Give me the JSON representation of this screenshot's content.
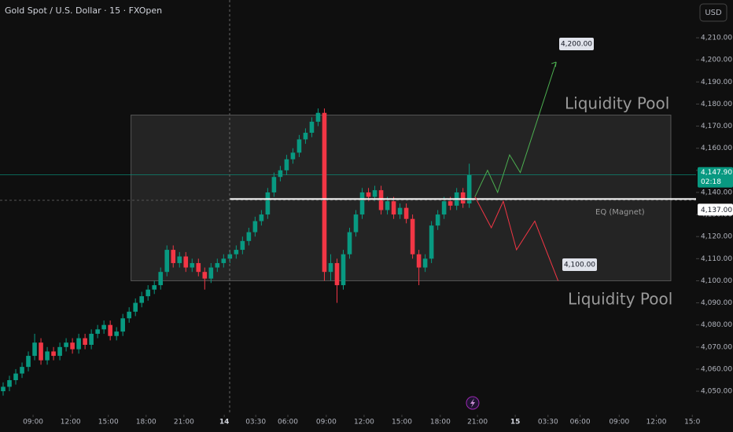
{
  "chart_data": {
    "type": "candlestick",
    "title": "Gold Spot / U.S. Dollar · 15 · FXOpen",
    "currency": "USD",
    "up_color": "#089981",
    "down_color": "#f23645",
    "series": {
      "open": [
        4050,
        4052,
        4055,
        4058,
        4061,
        4066,
        4072,
        4064,
        4068,
        4066,
        4070,
        4072,
        4069,
        4074,
        4071,
        4076,
        4078,
        4080,
        4075,
        4077,
        4083,
        4086,
        4090,
        4093,
        4096,
        4098,
        4104,
        4114,
        4108,
        4111,
        4106,
        4108,
        4104,
        4101,
        4106,
        4108,
        4110,
        4112,
        4114,
        4118,
        4122,
        4127,
        4130,
        4140,
        4147,
        4150,
        4155,
        4158,
        4164,
        4167,
        4172,
        4176,
        4104,
        4108,
        4098,
        4112,
        4122,
        4130,
        4140,
        4138,
        4141,
        4132,
        4136,
        4130,
        4133,
        4128,
        4112,
        4106,
        4110,
        4125,
        4130,
        4136,
        4134,
        4140,
        4135
      ],
      "high": [
        4054,
        4057,
        4060,
        4063,
        4068,
        4076,
        4074,
        4070,
        4070,
        4072,
        4074,
        4074,
        4076,
        4076,
        4078,
        4080,
        4082,
        4082,
        4079,
        4085,
        4088,
        4092,
        4095,
        4098,
        4100,
        4106,
        4116,
        4116,
        4113,
        4113,
        4110,
        4110,
        4106,
        4108,
        4110,
        4112,
        4114,
        4116,
        4120,
        4124,
        4129,
        4132,
        4142,
        4149,
        4152,
        4157,
        4160,
        4166,
        4169,
        4174,
        4178,
        4178,
        4112,
        4110,
        4114,
        4124,
        4132,
        4142,
        4142,
        4143,
        4143,
        4138,
        4138,
        4135,
        4135,
        4130,
        4114,
        4112,
        4127,
        4132,
        4138,
        4138,
        4142,
        4142,
        4153
      ],
      "low": [
        4048,
        4050,
        4053,
        4056,
        4059,
        4064,
        4062,
        4062,
        4064,
        4064,
        4068,
        4067,
        4067,
        4069,
        4069,
        4074,
        4076,
        4073,
        4073,
        4075,
        4081,
        4084,
        4088,
        4091,
        4094,
        4096,
        4102,
        4106,
        4106,
        4104,
        4104,
        4102,
        4096,
        4099,
        4104,
        4106,
        4108,
        4110,
        4112,
        4116,
        4120,
        4125,
        4128,
        4138,
        4145,
        4148,
        4153,
        4156,
        4162,
        4165,
        4170,
        4100,
        4100,
        4090,
        4096,
        4110,
        4120,
        4128,
        4136,
        4136,
        4130,
        4130,
        4128,
        4128,
        4126,
        4110,
        4098,
        4104,
        4108,
        4123,
        4128,
        4132,
        4132,
        4133,
        4133
      ],
      "close": [
        4052,
        4055,
        4058,
        4061,
        4066,
        4072,
        4064,
        4068,
        4066,
        4070,
        4072,
        4069,
        4074,
        4071,
        4076,
        4078,
        4080,
        4075,
        4077,
        4083,
        4086,
        4090,
        4093,
        4096,
        4098,
        4104,
        4114,
        4108,
        4111,
        4106,
        4108,
        4104,
        4101,
        4106,
        4108,
        4110,
        4112,
        4114,
        4118,
        4122,
        4127,
        4130,
        4140,
        4147,
        4150,
        4155,
        4158,
        4164,
        4167,
        4172,
        4176,
        4104,
        4108,
        4098,
        4112,
        4122,
        4130,
        4140,
        4138,
        4141,
        4132,
        4136,
        4130,
        4133,
        4128,
        4112,
        4106,
        4110,
        4125,
        4130,
        4136,
        4134,
        4140,
        4135,
        4147.9
      ]
    },
    "xlim": [
      -0.5,
      110
    ],
    "xticks": [
      {
        "value": 4.75,
        "label": "09:00"
      },
      {
        "value": 10.7,
        "label": "12:00"
      },
      {
        "value": 16.7,
        "label": "15:00"
      },
      {
        "value": 22.7,
        "label": "18:00"
      },
      {
        "value": 28.7,
        "label": "21:00"
      },
      {
        "value": 35.1,
        "label": "14"
      },
      {
        "value": 40.1,
        "label": "03:30"
      },
      {
        "value": 45.2,
        "label": "06:00"
      },
      {
        "value": 51.3,
        "label": "09:00"
      },
      {
        "value": 57.3,
        "label": "12:00"
      },
      {
        "value": 63.3,
        "label": "15:00"
      },
      {
        "value": 69.4,
        "label": "18:00"
      },
      {
        "value": 75.3,
        "label": "21:00"
      },
      {
        "value": 81.3,
        "label": "15"
      },
      {
        "value": 86.5,
        "label": "03:30"
      },
      {
        "value": 91.6,
        "label": "06:00"
      },
      {
        "value": 97.8,
        "label": "09:00"
      },
      {
        "value": 103.7,
        "label": "12:00"
      },
      {
        "value": 109.4,
        "label": "15:0"
      }
    ],
    "ylim": [
      4042.2,
      4227.1
    ],
    "yticks": [
      {
        "value": 4050,
        "label": "4,050.00"
      },
      {
        "value": 4060,
        "label": "4,060.00"
      },
      {
        "value": 4070,
        "label": "4,070.00"
      },
      {
        "value": 4080,
        "label": "4,080.00"
      },
      {
        "value": 4090,
        "label": "4,090.00"
      },
      {
        "value": 4100,
        "label": "4,100.00"
      },
      {
        "value": 4110,
        "label": "4,110.00"
      },
      {
        "value": 4120,
        "label": "4,120.00"
      },
      {
        "value": 4130,
        "label": "4,130.00"
      },
      {
        "value": 4140,
        "label": "4,140.00"
      },
      {
        "value": 4150,
        "label": "4,150.00"
      },
      {
        "value": 4160,
        "label": "4,160.00"
      },
      {
        "value": 4170,
        "label": "4,170.00"
      },
      {
        "value": 4180,
        "label": "4,180.00"
      },
      {
        "value": 4190,
        "label": "4,190.00"
      },
      {
        "value": 4200,
        "label": "4,200.00"
      },
      {
        "value": 4210,
        "label": "4,210.00"
      }
    ],
    "last_price": {
      "value": 4147.9,
      "label": "4,147.90",
      "countdown": "02:18"
    },
    "range_box": {
      "ylim": [
        4100,
        4175
      ],
      "xlim": [
        20.3,
        106
      ]
    },
    "eq_level": {
      "value": 4137,
      "label": "4,137.00",
      "name": "EQ (Magnet)",
      "x_start": 35.9
    },
    "zone_label": "Liquidity Pool",
    "targets": [
      {
        "value": 4200,
        "label": "4,200.00"
      },
      {
        "value": 4100,
        "label": "4,100.00"
      }
    ],
    "projections": [
      {
        "color": "#4caf50",
        "x": [
          74.9,
          76.9,
          78.5,
          80.4,
          82.1,
          87.8
        ],
        "values": [
          4138,
          4150,
          4140,
          4157,
          4149,
          4199
        ]
      },
      {
        "color": "#f23645",
        "x": [
          74.9,
          77.5,
          79.4,
          81.5,
          84.4,
          88.1
        ],
        "values": [
          4138,
          4124,
          4136,
          4114,
          4127,
          4100
        ]
      }
    ]
  }
}
